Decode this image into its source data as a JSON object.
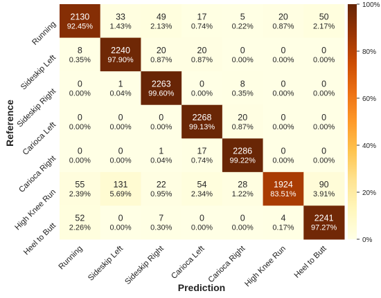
{
  "chart_data": {
    "type": "heatmap",
    "title": "",
    "xlabel": "Prediction",
    "ylabel": "Reference",
    "x_categories": [
      "Running",
      "Sideskip Left",
      "Sideskip Right",
      "Carioca Left",
      "Carioca Right",
      "High Knee Run",
      "Heel to Butt"
    ],
    "y_categories": [
      "Running",
      "Sideskip Left",
      "Sideskip Right",
      "Carioca Left",
      "Carioca Right",
      "High Knee Run",
      "Heel to Butt"
    ],
    "counts": [
      [
        2130,
        33,
        49,
        17,
        5,
        20,
        50
      ],
      [
        8,
        2240,
        20,
        20,
        0,
        0,
        0
      ],
      [
        0,
        1,
        2263,
        0,
        8,
        0,
        0
      ],
      [
        0,
        0,
        0,
        2268,
        20,
        0,
        0
      ],
      [
        0,
        0,
        1,
        17,
        2286,
        0,
        0
      ],
      [
        55,
        131,
        22,
        54,
        28,
        1924,
        90
      ],
      [
        52,
        0,
        7,
        0,
        0,
        4,
        2241
      ]
    ],
    "percents": [
      [
        "92.45%",
        "1.43%",
        "2.13%",
        "0.74%",
        "0.22%",
        "0.87%",
        "2.17%"
      ],
      [
        "0.35%",
        "97.90%",
        "0.87%",
        "0.87%",
        "0.00%",
        "0.00%",
        "0.00%"
      ],
      [
        "0.00%",
        "0.04%",
        "99.60%",
        "0.00%",
        "0.35%",
        "0.00%",
        "0.00%"
      ],
      [
        "0.00%",
        "0.00%",
        "0.00%",
        "99.13%",
        "0.87%",
        "0.00%",
        "0.00%"
      ],
      [
        "0.00%",
        "0.00%",
        "0.04%",
        "0.74%",
        "99.22%",
        "0.00%",
        "0.00%"
      ],
      [
        "2.39%",
        "5.69%",
        "0.95%",
        "2.34%",
        "1.22%",
        "83.51%",
        "3.91%"
      ],
      [
        "2.26%",
        "0.00%",
        "0.30%",
        "0.00%",
        "0.00%",
        "0.17%",
        "97.27%"
      ]
    ],
    "colorbar": {
      "ticks": [
        "0%",
        "20%",
        "40%",
        "60%",
        "80%",
        "100%"
      ],
      "range": [
        0,
        100
      ]
    },
    "colormap": "YlOrBr",
    "grid": false
  }
}
